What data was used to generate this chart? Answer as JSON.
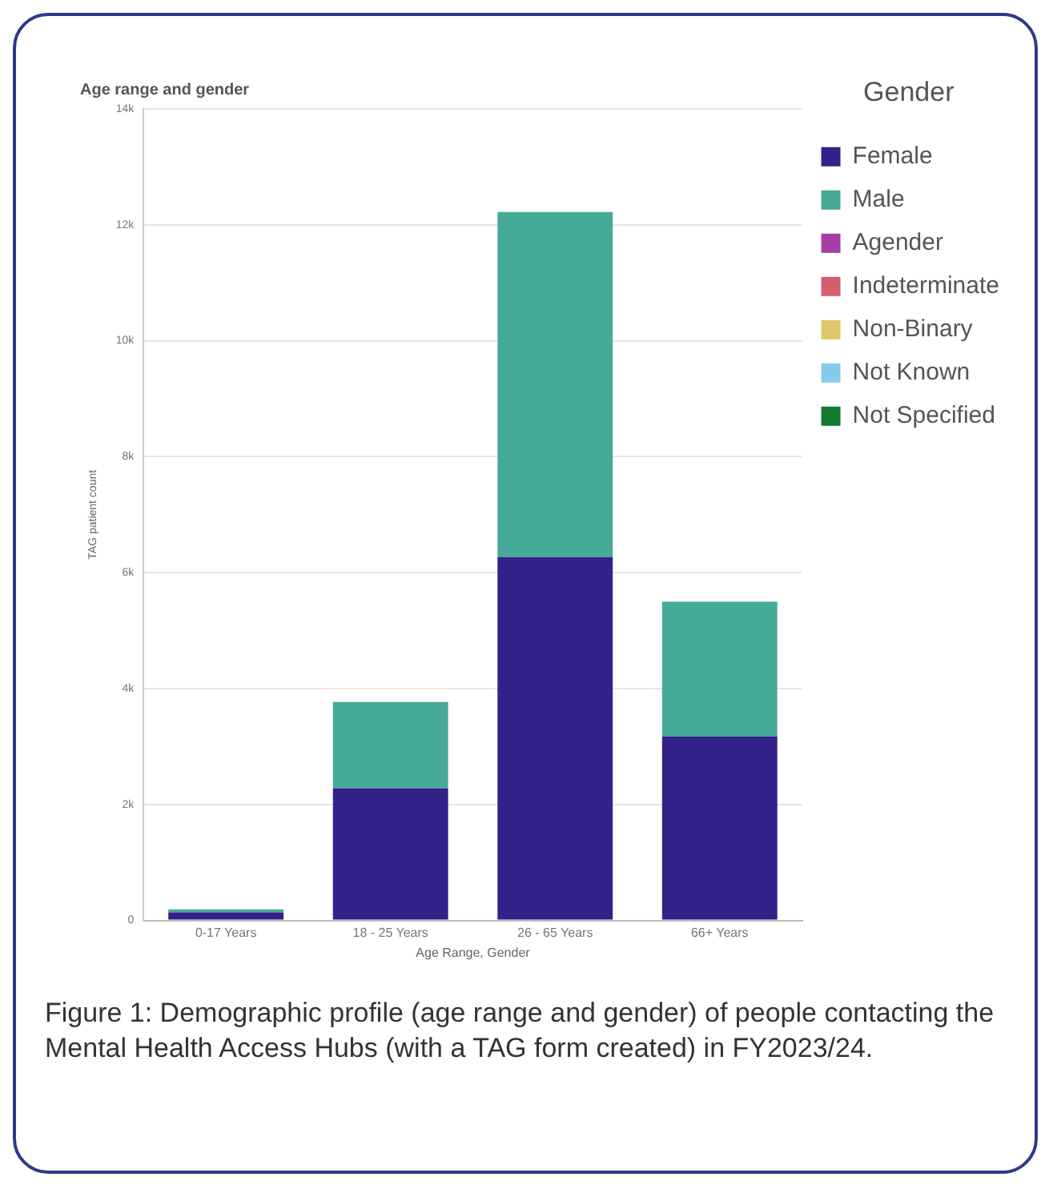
{
  "chart_data": {
    "type": "bar",
    "stacked": true,
    "title": "Age range and gender",
    "xlabel": "Age Range, Gender",
    "ylabel": "TAG patient count",
    "legend_title": "Gender",
    "legend": "top right",
    "grid": "y",
    "categories": [
      "0-17 Years",
      "18 - 25 Years",
      "26 - 65 Years",
      "66+ Years"
    ],
    "ylim": [
      0,
      14000
    ],
    "yticks": [
      {
        "value": 0,
        "label": "0"
      },
      {
        "value": 2000,
        "label": "2k"
      },
      {
        "value": 4000,
        "label": "4k"
      },
      {
        "value": 6000,
        "label": "6k"
      },
      {
        "value": 8000,
        "label": "8k"
      },
      {
        "value": 10000,
        "label": "10k"
      },
      {
        "value": 12000,
        "label": "12k"
      },
      {
        "value": 14000,
        "label": "14k"
      }
    ],
    "series": [
      {
        "name": "Female",
        "color": "#33218a",
        "values": [
          140,
          2280,
          6270,
          3170
        ]
      },
      {
        "name": "Male",
        "color": "#46aa98",
        "values": [
          50,
          1490,
          5950,
          2330
        ]
      },
      {
        "name": "Agender",
        "color": "#a63fa3",
        "values": [
          null,
          null,
          null,
          null
        ]
      },
      {
        "name": "Indeterminate",
        "color": "#d35f6e",
        "values": [
          null,
          null,
          null,
          null
        ]
      },
      {
        "name": "Non-Binary",
        "color": "#dcc86a",
        "values": [
          null,
          null,
          null,
          null
        ]
      },
      {
        "name": "Not Known",
        "color": "#86cbeb",
        "values": [
          null,
          null,
          null,
          null
        ]
      },
      {
        "name": "Not Specified",
        "color": "#137a33",
        "values": [
          null,
          null,
          null,
          null
        ]
      }
    ],
    "annotations": [
      "Figure 1: Demographic profile (age range and gender) of people contacting the Mental Health Access Hubs (with a TAG form created) in FY2023/24."
    ]
  }
}
